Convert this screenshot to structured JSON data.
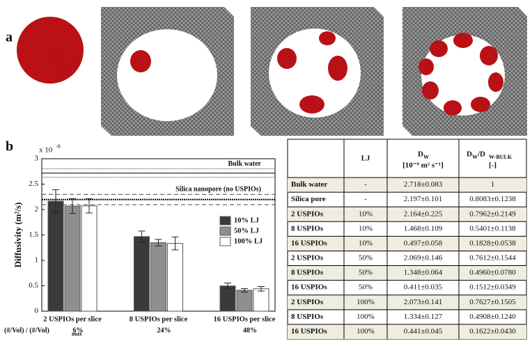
{
  "panel_labels": [
    "a",
    "b"
  ],
  "chart_data": {
    "type": "bar",
    "y_label": "Diffusivity (m²/s)",
    "y_scale_base": "x 10",
    "y_scale_exp": "-9",
    "categories": [
      "2 USPIOs per slice",
      "8 USPIOs per slice",
      "16 USPIOs per slice"
    ],
    "series": [
      {
        "name": "10%  LJ",
        "color": "#3a3a3a",
        "values": [
          2.164,
          1.468,
          0.497
        ],
        "errors": [
          0.225,
          0.109,
          0.058
        ]
      },
      {
        "name": "50%  LJ",
        "color": "#8f8f8f",
        "values": [
          2.069,
          1.348,
          0.411
        ],
        "errors": [
          0.146,
          0.064,
          0.035
        ]
      },
      {
        "name": "100% LJ",
        "color": "#ffffff",
        "values": [
          2.073,
          1.334,
          0.441
        ],
        "errors": [
          0.141,
          0.127,
          0.045
        ]
      }
    ],
    "references": [
      {
        "label": "Bulk water",
        "value": 2.718,
        "error": 0.083
      },
      {
        "label": "Silica nanopore (no USPIOs)",
        "value": 2.197,
        "error": 0.101
      }
    ],
    "ylim": [
      0,
      3
    ],
    "yticks": [
      0,
      0.5,
      1,
      1.5,
      2,
      2.5,
      3
    ],
    "x_note": "(#/Vol) / (#/Vol)",
    "x_note_sub": "max",
    "x_note_values": [
      "6%",
      "24%",
      "48%"
    ]
  },
  "table": {
    "header": {
      "lj": "LJ",
      "dw": "D",
      "dw_sub": "W",
      "dw_unit": "[10⁻⁹ m² s⁻¹]",
      "ratio": "D",
      "ratio_sub": "W",
      "ratio_mid": "/D",
      "ratio_sub2": "W-BULK",
      "ratio_unit": "[-]"
    },
    "rows": [
      [
        "Bulk water",
        "-",
        "2.718±0.083",
        "1"
      ],
      [
        "Silica pore",
        "-",
        "2.197±0.101",
        "0.8083±0.1238"
      ],
      [
        "2   USPIOs",
        "10%",
        "2.164±0.225",
        "0.7962±0.2149"
      ],
      [
        "8   USPIOs",
        "10%",
        "1.468±0.109",
        "0.5401±0.1138"
      ],
      [
        "16 USPIOs",
        "10%",
        "0.497±0.058",
        "0.1828±0.0538"
      ],
      [
        "2   USPIOs",
        "50%",
        "2.069±0.146",
        "0.7612±0.1544"
      ],
      [
        "8   USPIOs",
        "50%",
        "1.348±0.064",
        "0.4960±0.0780"
      ],
      [
        "16 USPIOs",
        "50%",
        "0.411±0.035",
        "0.1512±0.0349"
      ],
      [
        "2   USPIOs",
        "100%",
        "2.073±0.141",
        "0.7627±0.1505"
      ],
      [
        "8   USPIOs",
        "100%",
        "1.334±0.127",
        "0.4908±0.1240"
      ],
      [
        "16 USPIOs",
        "100%",
        "0.441±0.045",
        "0.1622±0.0430"
      ]
    ]
  }
}
